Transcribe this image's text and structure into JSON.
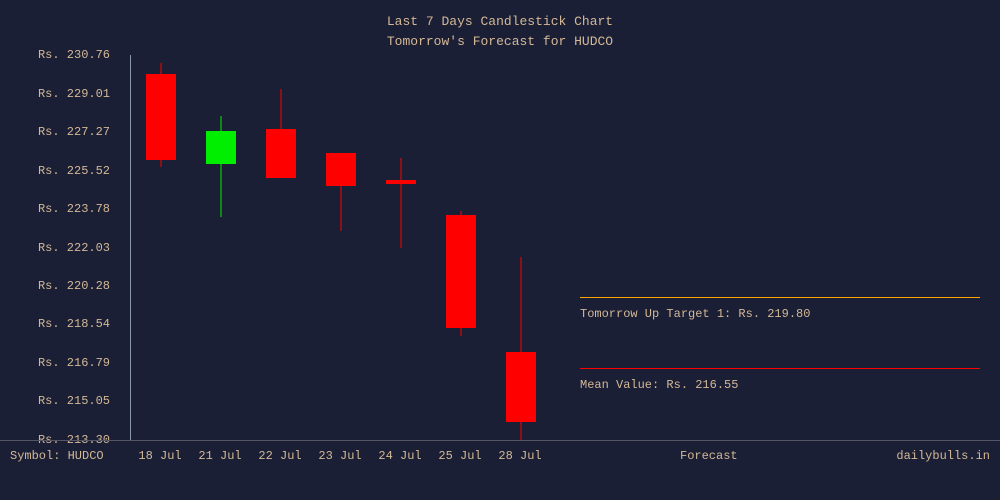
{
  "title": {
    "line1": "Last 7 Days Candlestick Chart",
    "line2": "Tomorrow's Forecast for HUDCO"
  },
  "colors": {
    "background": "#1a1f35",
    "text": "#d4b896",
    "axis": "#8899aa",
    "bullish": "#00ee00",
    "bearish": "#ff0000",
    "up_target_line": "#ffa500",
    "mean_line": "#ff0000"
  },
  "chart": {
    "type": "candlestick",
    "y_min": 213.3,
    "y_max": 230.76,
    "y_ticks": [
      230.76,
      229.01,
      227.27,
      225.52,
      223.78,
      222.03,
      220.28,
      218.54,
      216.79,
      215.05,
      213.3
    ],
    "y_prefix": "Rs. ",
    "x_labels": [
      "18 Jul",
      "21 Jul",
      "22 Jul",
      "23 Jul",
      "24 Jul",
      "25 Jul",
      "28 Jul"
    ],
    "candles": [
      {
        "open": 229.9,
        "close": 226.0,
        "high": 230.4,
        "low": 225.7,
        "color": "bearish"
      },
      {
        "open": 225.8,
        "close": 227.3,
        "high": 228.0,
        "low": 223.4,
        "color": "bullish"
      },
      {
        "open": 227.4,
        "close": 225.2,
        "high": 229.2,
        "low": 225.2,
        "color": "bearish"
      },
      {
        "open": 226.3,
        "close": 224.8,
        "high": 226.3,
        "low": 222.8,
        "color": "bearish"
      },
      {
        "open": 225.1,
        "close": 224.9,
        "high": 226.1,
        "low": 222.0,
        "color": "bearish"
      },
      {
        "open": 223.5,
        "close": 218.4,
        "high": 223.7,
        "low": 218.0,
        "color": "bearish"
      },
      {
        "open": 217.3,
        "close": 214.1,
        "high": 221.6,
        "low": 213.3,
        "color": "bearish"
      }
    ]
  },
  "forecast": {
    "up_target_value": 219.8,
    "up_target_label": "Tomorrow Up Target 1: Rs. 219.80",
    "mean_value": 216.55,
    "mean_label": "Mean Value: Rs. 216.55"
  },
  "footer": {
    "symbol_label": "Symbol: HUDCO",
    "center_label": "Forecast",
    "right_label": "dailybulls.in"
  }
}
